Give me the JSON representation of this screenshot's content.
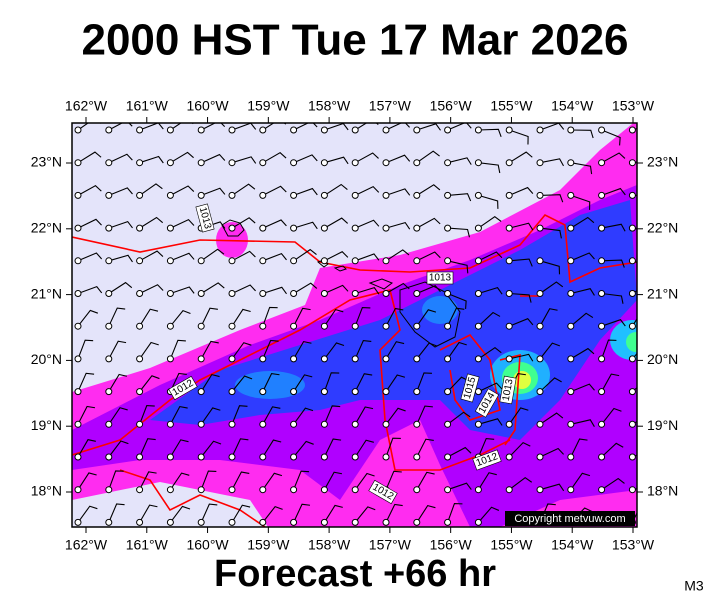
{
  "title": "2000 HST Tue 17 Mar 2026",
  "subtitle": "Forecast +66 hr",
  "corner_label": "M3",
  "copyright": "Copyright metvuw.com",
  "longitude_labels": [
    "162°W",
    "161°W",
    "160°W",
    "159°W",
    "158°W",
    "157°W",
    "156°W",
    "155°W",
    "154°W",
    "153°W"
  ],
  "latitude_labels": [
    "23°N",
    "22°N",
    "21°N",
    "20°N",
    "19°N",
    "18°N"
  ],
  "isobar_labels": [
    "1012",
    "1013",
    "1013",
    "1015",
    "1014",
    "1013",
    "1012",
    "1012"
  ]
}
